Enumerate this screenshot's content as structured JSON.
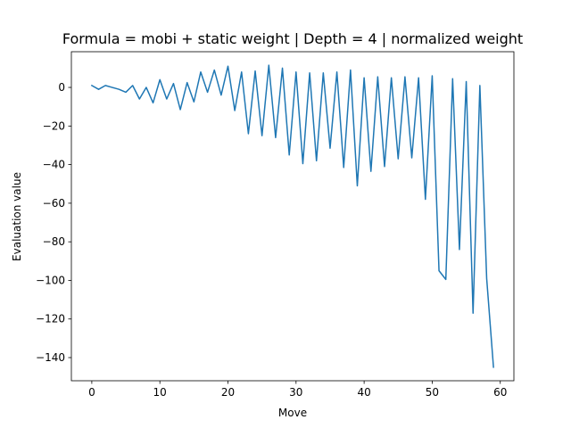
{
  "chart_data": {
    "type": "line",
    "title": "Formula = mobi + static weight | Depth = 4 | normalized weight",
    "xlabel": "Move",
    "ylabel": "Evaluation value",
    "xlim": [
      -3,
      62
    ],
    "ylim": [
      -152,
      18.5
    ],
    "xticks": [
      0,
      10,
      20,
      30,
      40,
      50,
      60
    ],
    "yticks": [
      0,
      -20,
      -40,
      -60,
      -80,
      -100,
      -120,
      -140
    ],
    "grid": false,
    "line_color": "#1f77b4",
    "series": [
      {
        "x": [
          0,
          1,
          2,
          3,
          4,
          5,
          6,
          7,
          8,
          9,
          10,
          11,
          12,
          13,
          14,
          15,
          16,
          17,
          18,
          19,
          20,
          21,
          22,
          23,
          24,
          25,
          26,
          27,
          28,
          29,
          30,
          31,
          32,
          33,
          34,
          35,
          36,
          37,
          38,
          39,
          40,
          41,
          42,
          43,
          44,
          45,
          46,
          47,
          48,
          49,
          50,
          51,
          52,
          53,
          54,
          55,
          56,
          57,
          58,
          59
        ],
        "values": [
          1,
          -1,
          1,
          0,
          -1,
          -2.5,
          1,
          -6,
          0,
          -8,
          4,
          -6,
          2,
          -11.5,
          2.5,
          -7.5,
          8,
          -2.5,
          9,
          -4,
          11,
          -12,
          8,
          -24,
          8.5,
          -25,
          11.5,
          -26,
          10,
          -35,
          8,
          -39.5,
          7.5,
          -38,
          7.5,
          -31.5,
          8,
          -41.5,
          9,
          -51,
          5,
          -43.5,
          5.5,
          -41,
          5,
          -37,
          5.5,
          -36.5,
          5,
          -58,
          6,
          -95,
          -99.5,
          4.5,
          -84,
          3,
          -117,
          1,
          -99,
          -145
        ]
      }
    ]
  }
}
